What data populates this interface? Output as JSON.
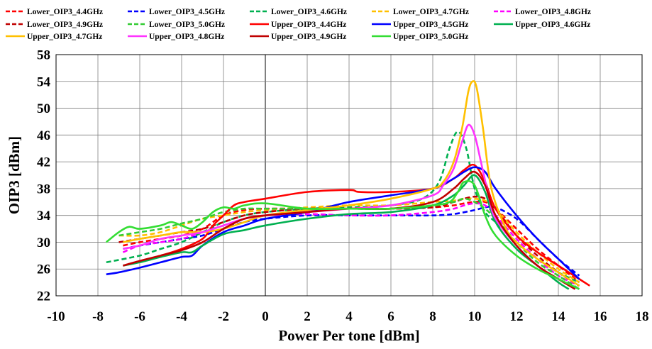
{
  "chart_data": {
    "type": "line",
    "xlabel": "Power Per tone [dBm]",
    "ylabel": "OIP3 [dBm]",
    "xlim": [
      -10,
      18
    ],
    "ylim": [
      22,
      58
    ],
    "x_ticks": [
      "-10",
      "-8",
      "-6",
      "-4",
      "-2",
      "0",
      "2",
      "4",
      "6",
      "8",
      "10",
      "12",
      "14",
      "16",
      "18"
    ],
    "y_ticks": [
      "22",
      "26",
      "30",
      "34",
      "38",
      "42",
      "46",
      "50",
      "54",
      "58"
    ],
    "grid": true,
    "legend_position": "top",
    "series": [
      {
        "name": "Lower_OIP3_4.4GHz",
        "color": "#ff0000",
        "dash": true,
        "x": [
          -6.8,
          -6,
          -5,
          -4,
          -3,
          -2,
          -1,
          0,
          2,
          4,
          6,
          8,
          9,
          9.5,
          10,
          10.5,
          11,
          12,
          13,
          14,
          15
        ],
        "y": [
          29.5,
          30.0,
          30.5,
          31.0,
          32.0,
          34.0,
          34.8,
          35.0,
          35.0,
          35.0,
          35.0,
          35.2,
          35.5,
          35.8,
          36.0,
          36.0,
          35.0,
          32.0,
          29.0,
          26.5,
          24.0
        ]
      },
      {
        "name": "Lower_OIP3_4.5GHz",
        "color": "#0000ff",
        "dash": true,
        "x": [
          -6.8,
          -6,
          -5,
          -4,
          -3,
          -2,
          -1,
          0,
          2,
          4,
          6,
          8,
          9,
          10,
          10.5,
          11,
          12,
          13,
          14,
          15
        ],
        "y": [
          29.0,
          29.5,
          30.0,
          30.5,
          31.0,
          32.0,
          33.0,
          33.5,
          34.0,
          34.0,
          34.0,
          34.0,
          34.2,
          34.8,
          35.2,
          35.2,
          33.5,
          30.5,
          27.5,
          25.0
        ]
      },
      {
        "name": "Lower_OIP3_4.6GHz",
        "color": "#00b050",
        "dash": true,
        "x": [
          -7.6,
          -6,
          -5,
          -4,
          -3,
          -2,
          -1,
          0,
          2,
          4,
          6,
          7.5,
          8.3,
          8.8,
          9.2,
          9.6,
          10,
          10.5,
          11,
          12,
          13,
          14,
          15
        ],
        "y": [
          27.0,
          28.0,
          29.0,
          30.0,
          31.5,
          33.0,
          34.0,
          34.5,
          35.0,
          35.2,
          35.5,
          36.5,
          39.0,
          44.0,
          46.5,
          44.0,
          38.0,
          34.5,
          33.0,
          30.0,
          27.5,
          25.5,
          24.0
        ]
      },
      {
        "name": "Lower_OIP3_4.7GHz",
        "color": "#ffc000",
        "dash": true,
        "x": [
          -7.0,
          -6,
          -5,
          -4,
          -3,
          -2,
          -1,
          0,
          2,
          4,
          6,
          8,
          9,
          9.5,
          10,
          10.5,
          11,
          12,
          13,
          14,
          15
        ],
        "y": [
          31.0,
          31.0,
          31.5,
          32.5,
          33.5,
          34.0,
          34.5,
          34.8,
          35.2,
          35.5,
          35.5,
          36.0,
          36.2,
          36.5,
          36.5,
          36.2,
          35.0,
          31.5,
          28.5,
          26.0,
          24.0
        ]
      },
      {
        "name": "Lower_OIP3_4.8GHz",
        "color": "#ff00ff",
        "dash": true,
        "x": [
          -6.8,
          -6,
          -5,
          -4,
          -3,
          -2,
          -1,
          0,
          2,
          4,
          6,
          8,
          9,
          9.5,
          10,
          10.5,
          11,
          12,
          13,
          14,
          15
        ],
        "y": [
          28.5,
          29.5,
          30.0,
          30.5,
          31.5,
          32.5,
          33.5,
          34.0,
          34.2,
          34.0,
          34.0,
          34.5,
          35.0,
          35.5,
          35.8,
          35.5,
          34.0,
          30.5,
          27.5,
          25.0,
          23.5
        ]
      },
      {
        "name": "Lower_OIP3_4.9GHz",
        "color": "#c00000",
        "dash": true,
        "x": [
          -7.0,
          -6,
          -5,
          -4,
          -3,
          -2,
          -1,
          0,
          2,
          4,
          6,
          8,
          9,
          9.5,
          10,
          10.5,
          11,
          12,
          13,
          14,
          15
        ],
        "y": [
          30.0,
          30.5,
          31.0,
          31.5,
          32.0,
          33.0,
          34.0,
          34.5,
          35.0,
          35.0,
          35.0,
          35.2,
          36.0,
          36.5,
          36.8,
          36.5,
          35.0,
          31.0,
          28.0,
          25.5,
          23.5
        ]
      },
      {
        "name": "Lower_OIP3_5.0GHz",
        "color": "#33cc33",
        "dash": true,
        "x": [
          -7.0,
          -6,
          -5,
          -4,
          -3,
          -2,
          -1,
          0,
          2,
          4,
          6,
          8,
          9,
          9.5,
          10,
          10.5,
          11,
          12,
          13,
          14,
          15
        ],
        "y": [
          31.0,
          31.5,
          32.0,
          32.8,
          33.5,
          34.5,
          35.0,
          35.0,
          35.0,
          35.0,
          35.0,
          35.5,
          36.0,
          36.5,
          36.0,
          35.0,
          33.5,
          30.0,
          27.0,
          25.0,
          23.0
        ]
      },
      {
        "name": "Upper_OIP3_4.4GHz",
        "color": "#ff0000",
        "dash": false,
        "x": [
          -6.8,
          -6,
          -5,
          -4,
          -3,
          -2.5,
          -2,
          -1.5,
          -1,
          0,
          2,
          4,
          4.5,
          6,
          8,
          9,
          9.5,
          10,
          10.5,
          11,
          12,
          13,
          14,
          15,
          15.5
        ],
        "y": [
          26.5,
          27.2,
          28.0,
          29.0,
          30.5,
          32.5,
          34.0,
          35.5,
          36.0,
          36.5,
          37.5,
          37.8,
          37.5,
          37.5,
          38.0,
          39.5,
          40.8,
          41.5,
          39.0,
          35.0,
          31.0,
          28.5,
          26.5,
          24.5,
          23.5
        ]
      },
      {
        "name": "Upper_OIP3_4.5GHz",
        "color": "#0000ff",
        "dash": false,
        "x": [
          -7.6,
          -7,
          -6,
          -5,
          -4,
          -3.5,
          -3,
          -2,
          -1,
          0,
          2,
          4,
          6,
          8,
          9,
          9.5,
          10,
          10.5,
          11,
          12,
          13,
          14,
          15
        ],
        "y": [
          25.2,
          25.5,
          26.2,
          27.0,
          27.8,
          28.0,
          29.5,
          31.5,
          32.5,
          33.5,
          34.5,
          36.0,
          37.0,
          38.0,
          39.5,
          40.5,
          41.2,
          40.5,
          38.0,
          34.0,
          30.5,
          27.5,
          24.5
        ]
      },
      {
        "name": "Upper_OIP3_4.6GHz",
        "color": "#00b050",
        "dash": false,
        "x": [
          -6.8,
          -6,
          -5,
          -4,
          -3.5,
          -3,
          -2,
          -1,
          0,
          2,
          4,
          6,
          8,
          9,
          9.5,
          10,
          10.5,
          11,
          12,
          13,
          14,
          14.5
        ],
        "y": [
          26.5,
          27.0,
          27.8,
          28.5,
          28.5,
          29.5,
          31.2,
          31.8,
          32.5,
          33.5,
          34.2,
          34.5,
          35.5,
          37.0,
          38.5,
          40.0,
          37.5,
          33.0,
          29.0,
          26.5,
          24.0,
          23.0
        ]
      },
      {
        "name": "Upper_OIP3_4.7GHz",
        "color": "#ffc000",
        "dash": false,
        "x": [
          -6.8,
          -6,
          -5,
          -4,
          -3,
          -2,
          -1,
          0,
          2,
          4,
          6,
          8,
          8.5,
          9,
          9.4,
          9.7,
          9.9,
          10.1,
          10.4,
          10.8,
          11.5,
          12,
          13,
          14,
          15
        ],
        "y": [
          30.0,
          30.5,
          31.0,
          31.5,
          31.5,
          32.0,
          33.0,
          34.0,
          34.8,
          35.5,
          36.5,
          38.0,
          39.0,
          42.0,
          47.0,
          52.5,
          54.0,
          53.0,
          47.0,
          38.0,
          32.0,
          30.0,
          27.5,
          25.5,
          23.5
        ]
      },
      {
        "name": "Upper_OIP3_4.8GHz",
        "color": "#ff33ff",
        "dash": false,
        "x": [
          -6.8,
          -6,
          -5,
          -4,
          -3,
          -2,
          -1,
          0,
          2,
          4,
          6,
          8,
          8.5,
          9,
          9.4,
          9.7,
          10,
          10.3,
          10.7,
          11,
          12,
          13,
          14,
          15
        ],
        "y": [
          29.0,
          29.5,
          30.5,
          31.0,
          31.5,
          32.5,
          33.5,
          34.0,
          34.5,
          35.0,
          35.5,
          37.0,
          38.5,
          41.0,
          45.0,
          47.5,
          46.0,
          42.0,
          36.5,
          33.5,
          29.5,
          26.5,
          24.5,
          23.0
        ]
      },
      {
        "name": "Upper_OIP3_4.9GHz",
        "color": "#c00000",
        "dash": false,
        "x": [
          -6.8,
          -6,
          -5,
          -4,
          -3,
          -2,
          -1,
          0,
          2,
          4,
          6,
          8,
          9,
          9.5,
          10,
          10.5,
          11,
          12,
          13,
          14,
          14.8
        ],
        "y": [
          26.5,
          27.2,
          28.0,
          28.8,
          30.0,
          32.0,
          33.5,
          34.0,
          34.5,
          35.0,
          35.0,
          36.0,
          38.0,
          39.5,
          40.5,
          38.5,
          34.0,
          29.5,
          26.5,
          24.5,
          23.0
        ]
      },
      {
        "name": "Upper_OIP3_5.0GHz",
        "color": "#33dd33",
        "dash": false,
        "x": [
          -7.6,
          -7,
          -6.5,
          -6,
          -5,
          -4.5,
          -4,
          -3.5,
          -3,
          -2.5,
          -2,
          -1.5,
          -1,
          0,
          2,
          4,
          6,
          8,
          8.8,
          9.2,
          9.5,
          10,
          10.5,
          11,
          12,
          13,
          14,
          15
        ],
        "y": [
          30.0,
          31.5,
          32.3,
          32.0,
          32.5,
          33.0,
          32.5,
          32.0,
          33.0,
          34.5,
          35.2,
          35.0,
          35.5,
          35.8,
          35.0,
          35.0,
          35.0,
          35.5,
          36.0,
          37.5,
          39.0,
          38.5,
          34.0,
          31.0,
          28.0,
          26.0,
          24.5,
          23.0
        ]
      }
    ]
  }
}
